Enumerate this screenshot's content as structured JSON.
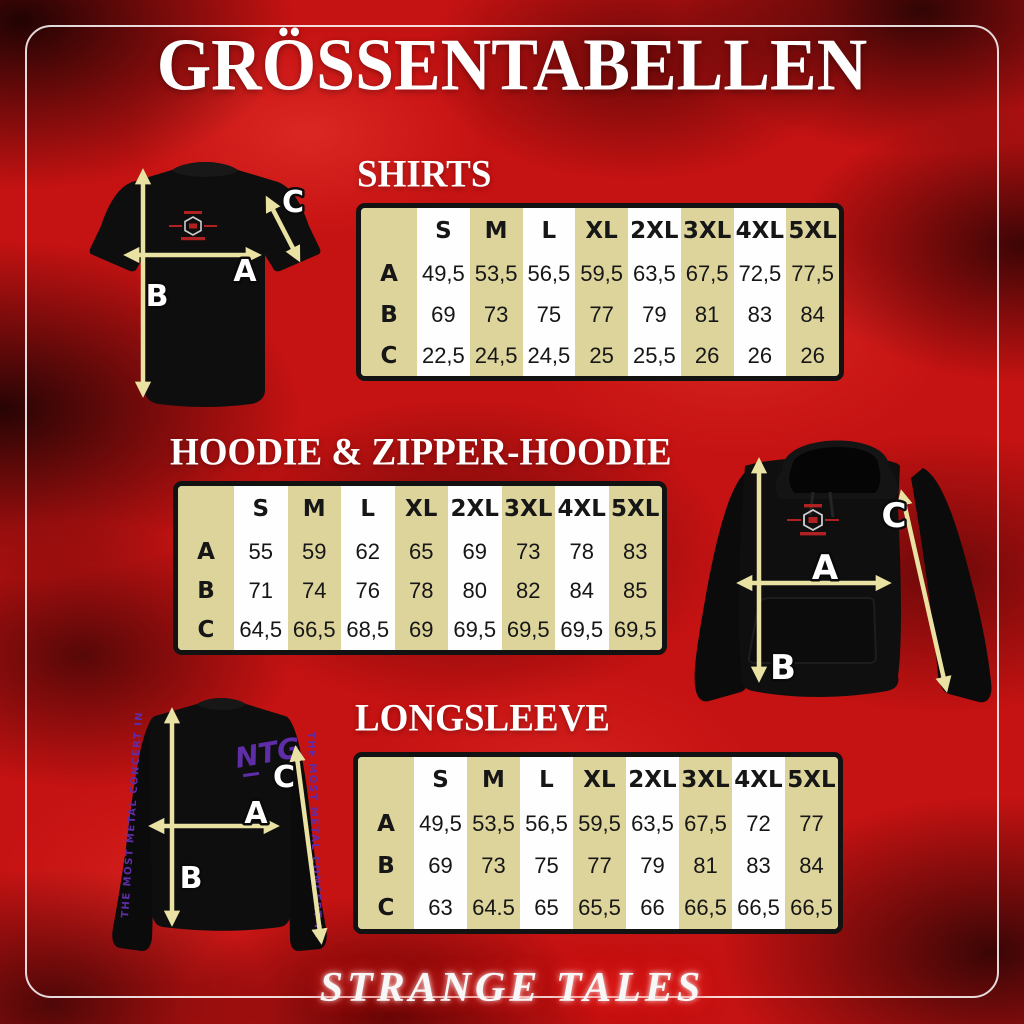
{
  "title": "GRÖSSENTABELLEN",
  "brand": "STRANGE TALES",
  "sizes": [
    "S",
    "M",
    "L",
    "XL",
    "2XL",
    "3XL",
    "4XL",
    "5XL"
  ],
  "measures": {
    "a": "A",
    "b": "B",
    "c": "C"
  },
  "sections": {
    "shirts": {
      "title": "SHIRTS",
      "rows": [
        {
          "label": "A",
          "values": [
            "49,5",
            "53,5",
            "56,5",
            "59,5",
            "63,5",
            "67,5",
            "72,5",
            "77,5"
          ]
        },
        {
          "label": "B",
          "values": [
            "69",
            "73",
            "75",
            "77",
            "79",
            "81",
            "83",
            "84"
          ]
        },
        {
          "label": "C",
          "values": [
            "22,5",
            "24,5",
            "24,5",
            "25",
            "25,5",
            "26",
            "26",
            "26"
          ]
        }
      ]
    },
    "hoodie": {
      "title": "HOODIE & ZIPPER-HOODIE",
      "rows": [
        {
          "label": "A",
          "values": [
            "55",
            "59",
            "62",
            "65",
            "69",
            "73",
            "78",
            "83"
          ]
        },
        {
          "label": "B",
          "values": [
            "71",
            "74",
            "76",
            "78",
            "80",
            "82",
            "84",
            "85"
          ]
        },
        {
          "label": "C",
          "values": [
            "64,5",
            "66,5",
            "68,5",
            "69",
            "69,5",
            "69,5",
            "69,5",
            "69,5"
          ]
        }
      ]
    },
    "longsleeve": {
      "title": "LONGSLEEVE",
      "rows": [
        {
          "label": "A",
          "values": [
            "49,5",
            "53,5",
            "56,5",
            "59,5",
            "63,5",
            "67,5",
            "72",
            "77"
          ]
        },
        {
          "label": "B",
          "values": [
            "69",
            "73",
            "75",
            "77",
            "79",
            "81",
            "83",
            "84"
          ]
        },
        {
          "label": "C",
          "values": [
            "63",
            "64.5",
            "65",
            "65,5",
            "66",
            "66,5",
            "66,5",
            "66,5"
          ]
        }
      ]
    }
  },
  "garments": {
    "longsleeve": {
      "chest_logo": "NTG",
      "sleeve_text": "THE MOST METAL CONCERT IN"
    }
  },
  "colors": {
    "background_red": "#c51212",
    "table_tan": "#ddd49c",
    "table_white": "#fefefe",
    "table_border": "#121212",
    "arrow_yellow": "#e9e2a2",
    "garment_black": "#0e0e0e",
    "sleeve_purple": "#5f2da8",
    "crest_red": "#bb2222",
    "frame_white": "#ffffff"
  }
}
